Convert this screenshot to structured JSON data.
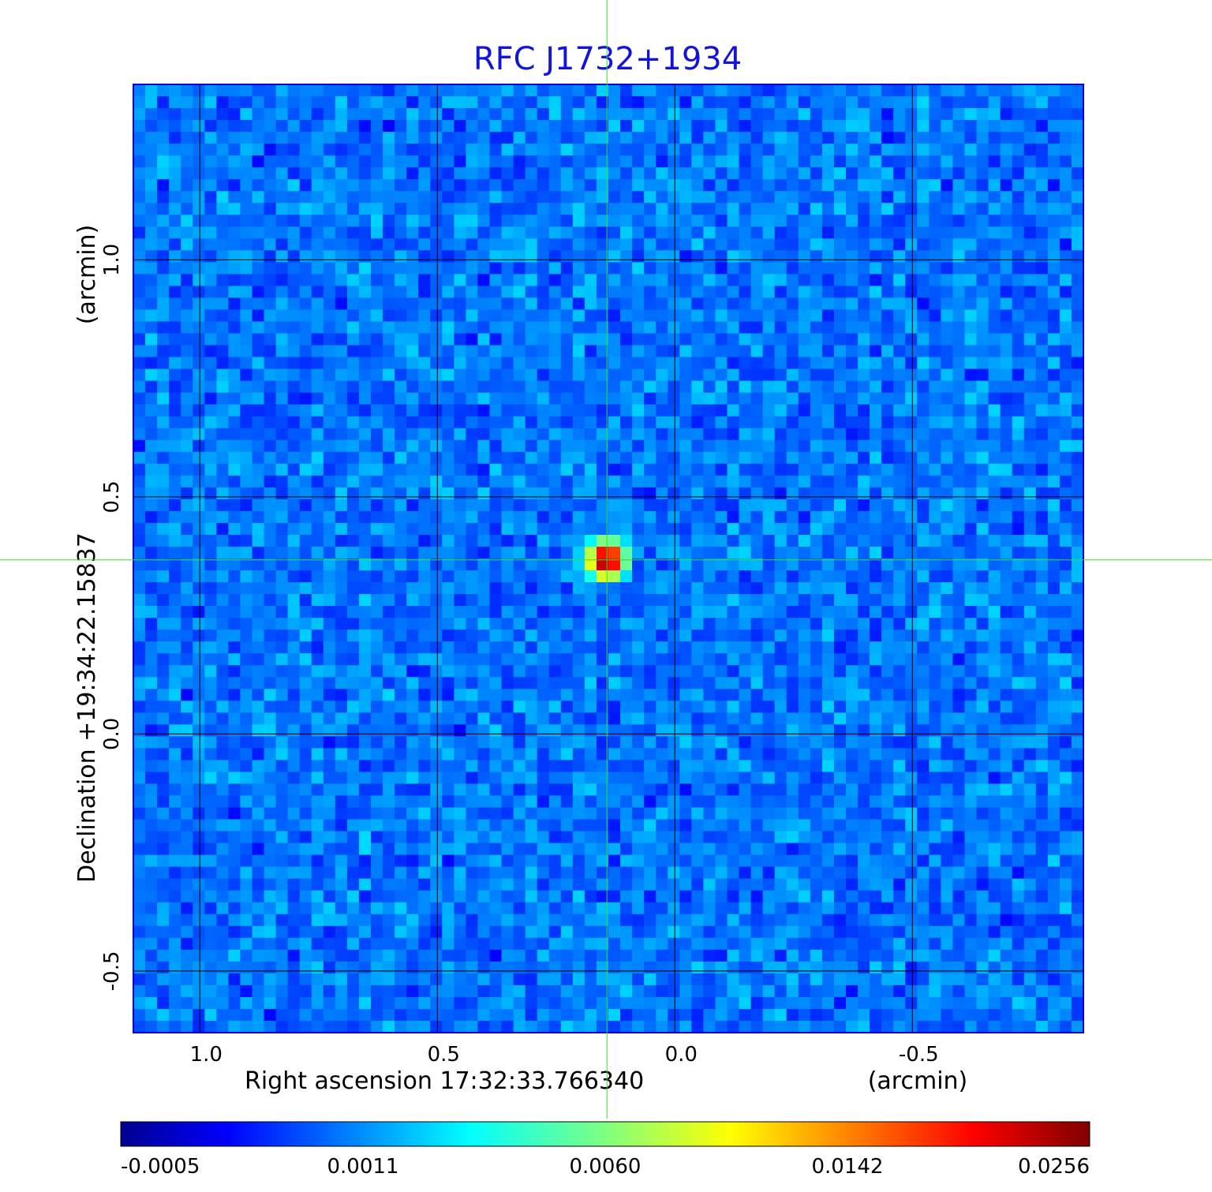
{
  "chart_data": {
    "type": "heatmap",
    "title": "RFC J1732+1934",
    "xlabel": "Right ascension  17:32:33.766340",
    "xunit": "(arcmin)",
    "ylabel": "Declination  +19:34:22.15837",
    "yunit": "(arcmin)",
    "xlim": [
      1.14,
      -0.86
    ],
    "ylim": [
      -0.63,
      1.37
    ],
    "x_ticks": [
      1.0,
      0.5,
      0.0,
      -0.5
    ],
    "x_tick_labels": [
      "1.0",
      "0.5",
      "0.0",
      "-0.5"
    ],
    "y_ticks": [
      1.0,
      0.5,
      0.0,
      -0.5
    ],
    "y_tick_labels": [
      "1.0",
      "0.5",
      "0.0",
      "-0.5"
    ],
    "grid": true,
    "colormap": "jet",
    "background_level": 0.0005,
    "source": {
      "x": 0.143,
      "y": 0.367,
      "peak": 0.0256
    },
    "crosshair": {
      "x": 0.143,
      "y": 0.367
    },
    "colorbar": {
      "ticks": [
        -0.0005,
        0.0011,
        0.006,
        0.0142,
        0.0256
      ],
      "tick_labels": [
        "-0.0005",
        "0.0011",
        "0.0060",
        "0.0142",
        "0.0256"
      ]
    },
    "colors": {
      "title": "#1414d8",
      "grid": "#000000",
      "crosshair": "#33dd33",
      "frame": "#0000cc"
    }
  }
}
